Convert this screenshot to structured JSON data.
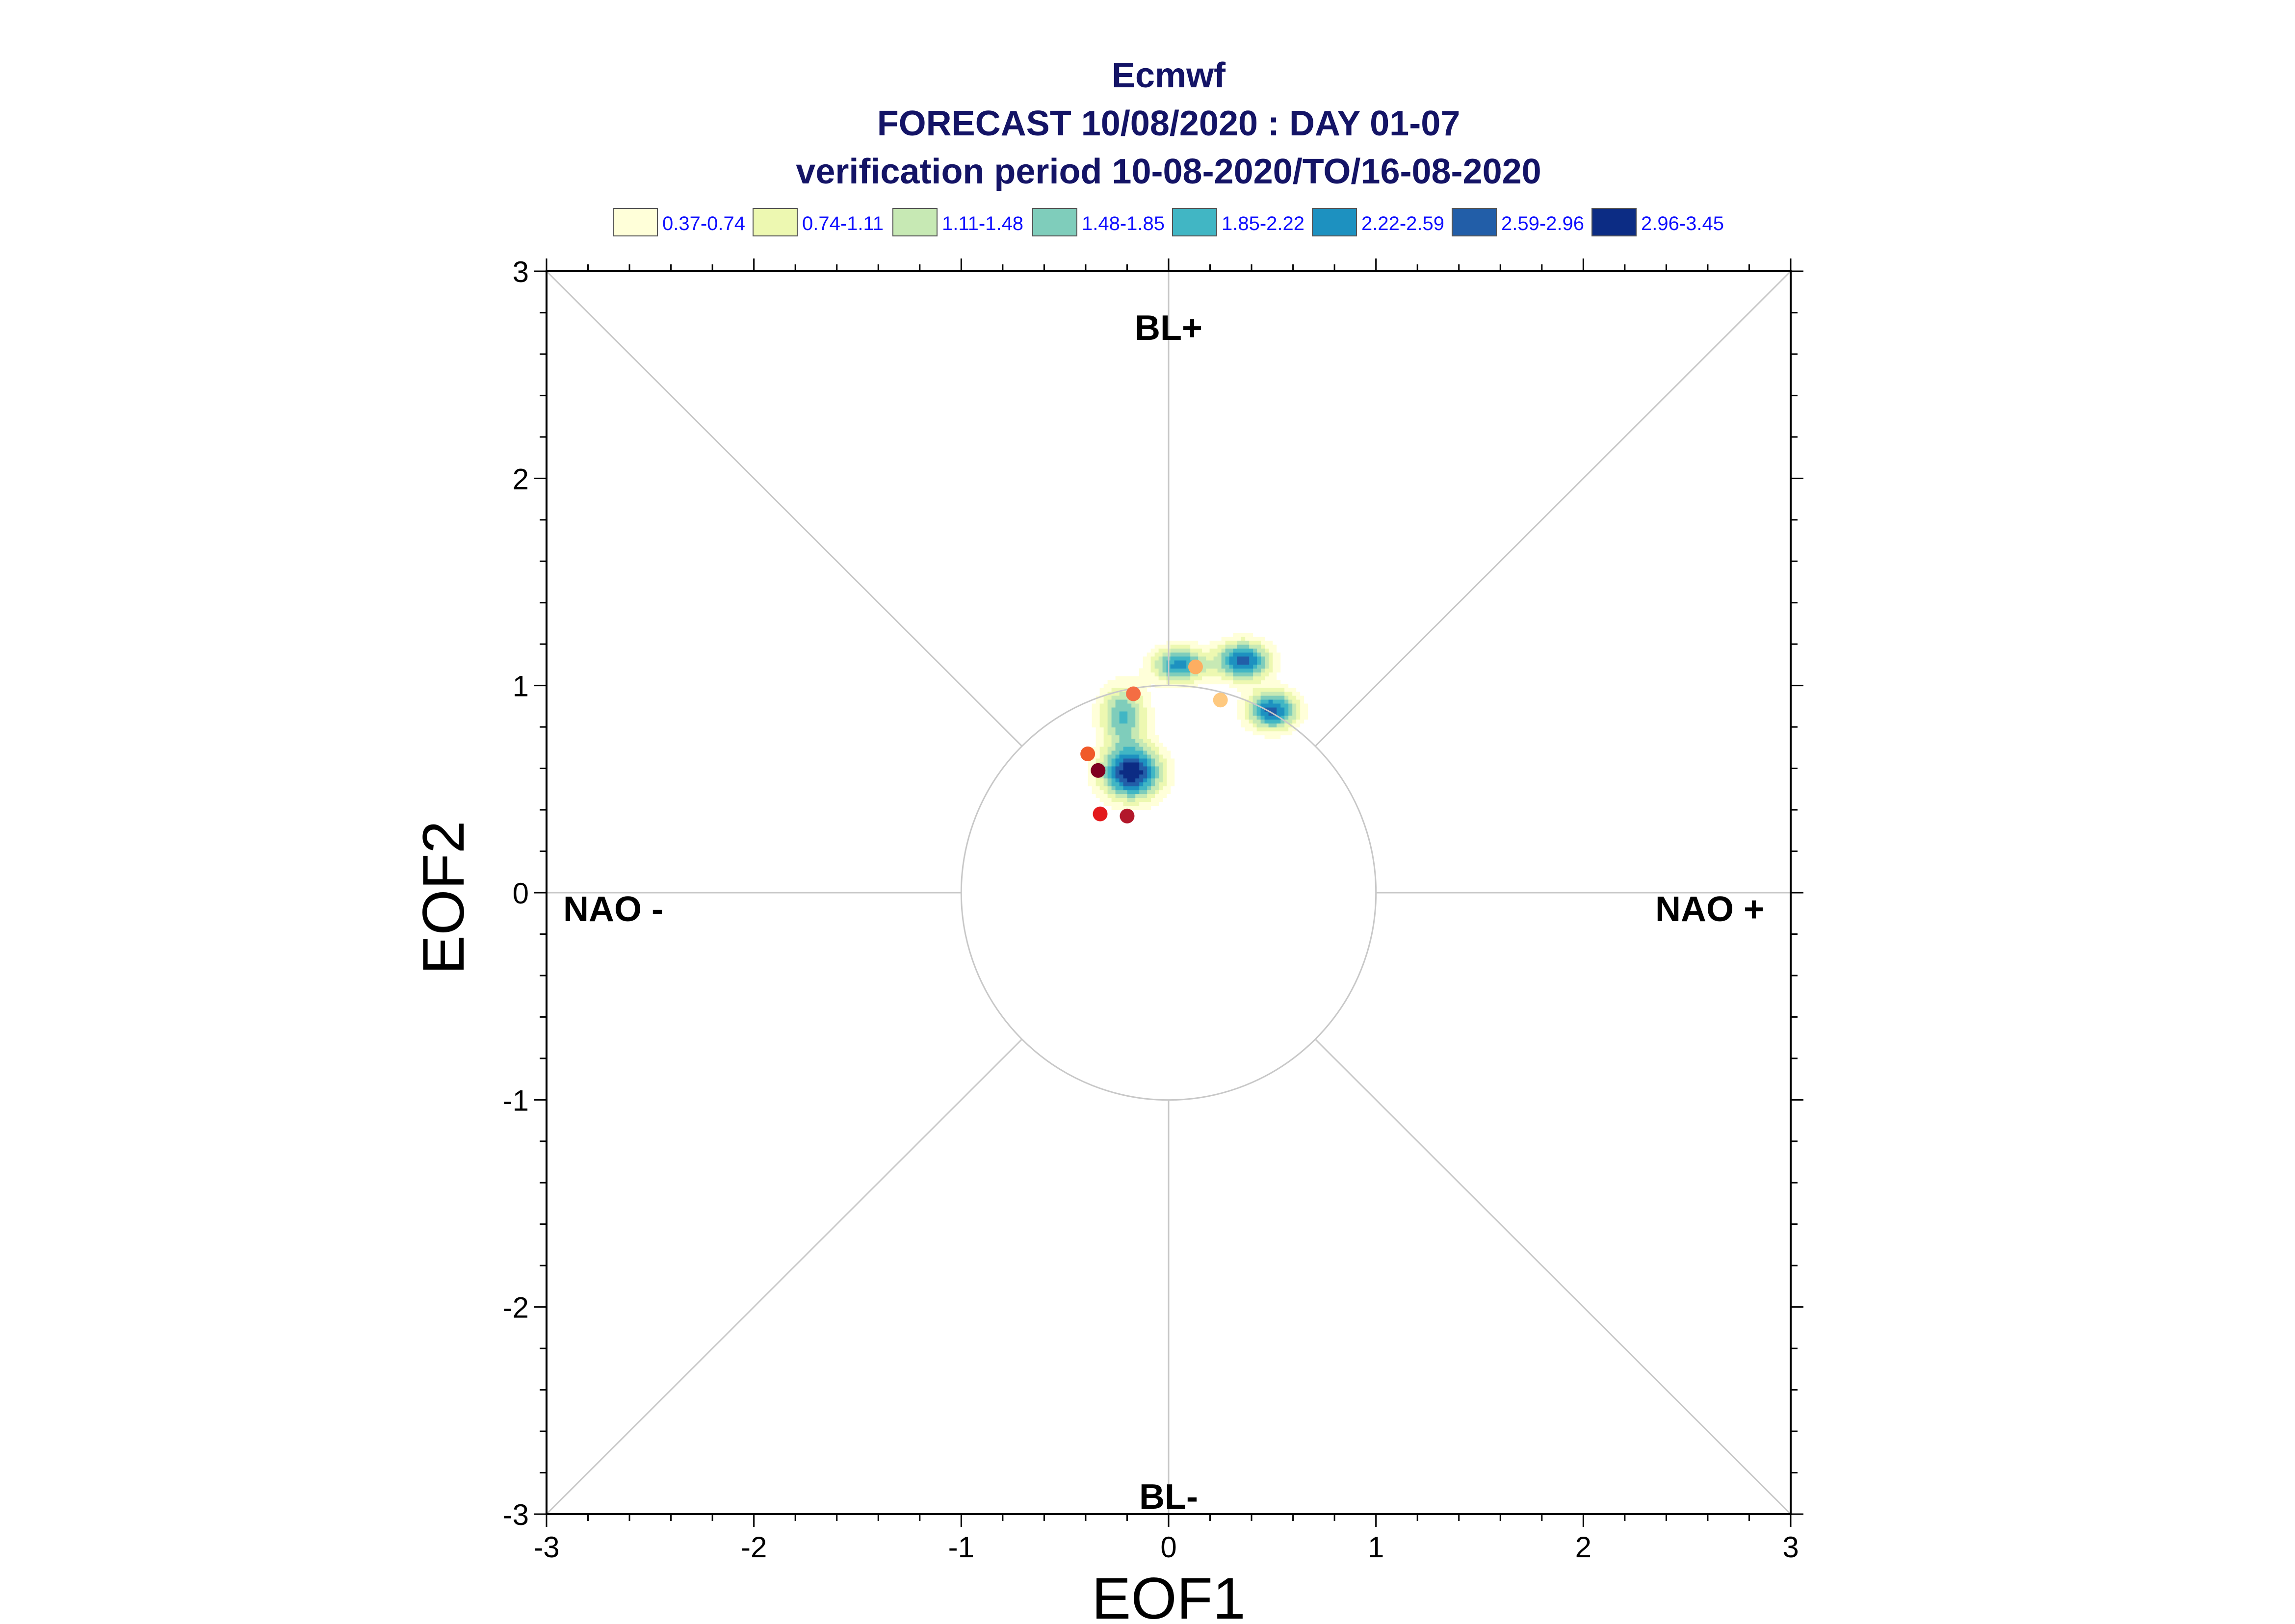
{
  "chart_data": {
    "type": "scatter",
    "title": "Ecmwf",
    "subtitle": [
      "FORECAST 10/08/2020 : DAY 01-07",
      "verification period 10-08-2020/TO/16-08-2020"
    ],
    "xlabel": "EOF1",
    "ylabel": "EOF2",
    "xlim": [
      -3,
      3
    ],
    "ylim": [
      -3,
      3
    ],
    "xticks": [
      -3,
      -2,
      -1,
      0,
      1,
      2,
      3
    ],
    "yticks": [
      -3,
      -2,
      -1,
      0,
      1,
      2,
      3
    ],
    "tick_labels": [
      "-3",
      "-2",
      "-1",
      "0",
      "1",
      "2",
      "3"
    ],
    "region_labels": {
      "top": "BL+",
      "bottom": "BL-",
      "left": "NAO -",
      "right": "NAO +"
    },
    "unit_circle_radius": 1,
    "legend": {
      "placement": "top",
      "entries": [
        {
          "label": "0.37-0.74",
          "color": "#ffffd9"
        },
        {
          "label": "0.74-1.11",
          "color": "#edf8b1"
        },
        {
          "label": "1.11-1.48",
          "color": "#c7e9b4"
        },
        {
          "label": "1.48-1.85",
          "color": "#7fcdbb"
        },
        {
          "label": "1.85-2.22",
          "color": "#41b6c4"
        },
        {
          "label": "2.22-2.59",
          "color": "#1d91c0"
        },
        {
          "label": "2.59-2.96",
          "color": "#225ea8"
        },
        {
          "label": "2.96-3.45",
          "color": "#0c2c84"
        }
      ]
    },
    "density_centers": [
      {
        "x": -0.18,
        "y": 0.58,
        "peak": 3.3,
        "sx": 0.1,
        "sy": 0.09
      },
      {
        "x": -0.22,
        "y": 0.86,
        "peak": 1.9,
        "sx": 0.08,
        "sy": 0.1
      },
      {
        "x": 0.05,
        "y": 1.1,
        "peak": 2.4,
        "sx": 0.09,
        "sy": 0.06
      },
      {
        "x": 0.36,
        "y": 1.12,
        "peak": 2.75,
        "sx": 0.09,
        "sy": 0.065
      },
      {
        "x": 0.5,
        "y": 0.88,
        "peak": 2.75,
        "sx": 0.085,
        "sy": 0.065
      }
    ],
    "points": [
      {
        "x": -0.17,
        "y": 0.96,
        "color": "#f46d43"
      },
      {
        "x": 0.13,
        "y": 1.09,
        "color": "#fdae61"
      },
      {
        "x": 0.25,
        "y": 0.93,
        "color": "#fec980"
      },
      {
        "x": -0.39,
        "y": 0.67,
        "color": "#f05a2a"
      },
      {
        "x": -0.34,
        "y": 0.59,
        "color": "#800020"
      },
      {
        "x": -0.33,
        "y": 0.38,
        "color": "#e31a1c"
      },
      {
        "x": -0.2,
        "y": 0.37,
        "color": "#b2182b"
      }
    ]
  }
}
